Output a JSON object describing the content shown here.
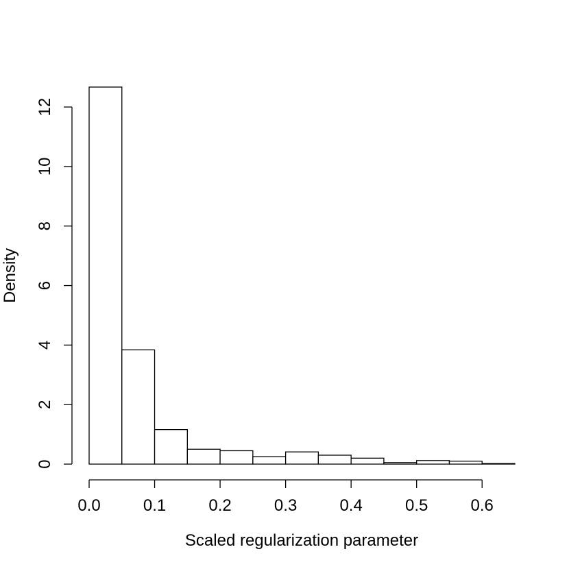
{
  "chart_data": {
    "type": "bar",
    "subtype": "histogram",
    "title": "",
    "xlabel": "Scaled regularization parameter",
    "ylabel": "Density",
    "bin_edges": [
      0.0,
      0.05,
      0.1,
      0.15,
      0.2,
      0.25,
      0.3,
      0.35,
      0.4,
      0.45,
      0.5,
      0.55,
      0.6,
      0.65
    ],
    "values": [
      12.67,
      3.84,
      1.16,
      0.5,
      0.45,
      0.25,
      0.41,
      0.3,
      0.2,
      0.05,
      0.12,
      0.1,
      0.02
    ],
    "xlim": [
      0.0,
      0.65
    ],
    "ylim": [
      0,
      12.67
    ],
    "x_ticks": [
      0.0,
      0.1,
      0.2,
      0.3,
      0.4,
      0.5,
      0.6
    ],
    "x_tick_labels": [
      "0.0",
      "0.1",
      "0.2",
      "0.3",
      "0.4",
      "0.5",
      "0.6"
    ],
    "y_ticks": [
      0,
      2,
      4,
      6,
      8,
      10,
      12
    ],
    "y_tick_labels": [
      "0",
      "2",
      "4",
      "6",
      "8",
      "10",
      "12"
    ],
    "grid": false,
    "colors": {
      "bar_fill": "#ffffff",
      "bar_stroke": "#000000"
    }
  }
}
